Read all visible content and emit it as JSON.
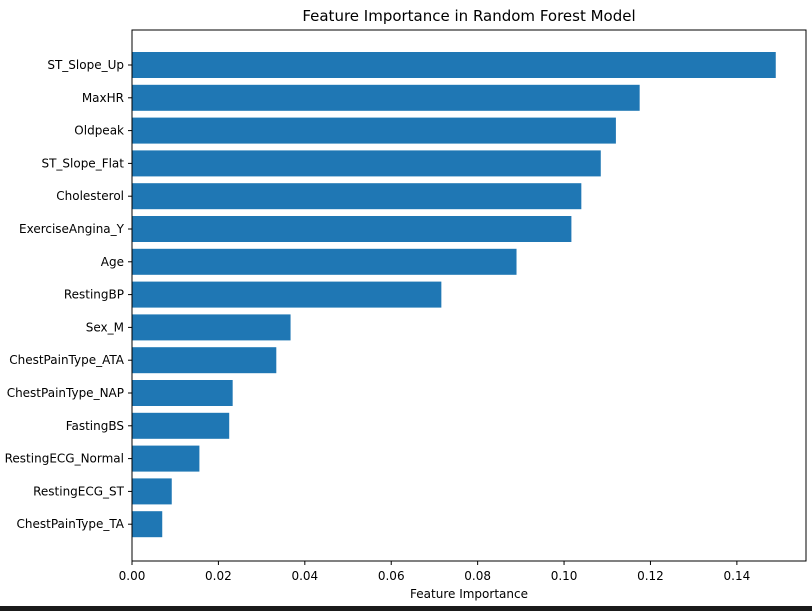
{
  "chart_data": {
    "type": "bar",
    "orientation": "horizontal",
    "title": "Feature Importance in Random Forest Model",
    "xlabel": "Feature Importance",
    "ylabel": "",
    "categories": [
      "ST_Slope_Up",
      "MaxHR",
      "Oldpeak",
      "ST_Slope_Flat",
      "Cholesterol",
      "ExerciseAngina_Y",
      "Age",
      "RestingBP",
      "Sex_M",
      "ChestPainType_ATA",
      "ChestPainType_NAP",
      "FastingBS",
      "RestingECG_Normal",
      "RestingECG_ST",
      "ChestPainType_TA"
    ],
    "values": [
      0.149,
      0.1175,
      0.112,
      0.1085,
      0.104,
      0.1017,
      0.089,
      0.0716,
      0.0367,
      0.0334,
      0.0233,
      0.0225,
      0.0156,
      0.0092,
      0.007
    ],
    "xlim": [
      0,
      0.156
    ],
    "xticks": [
      0.0,
      0.02,
      0.04,
      0.06,
      0.08,
      0.1,
      0.12,
      0.14
    ],
    "xtick_labels": [
      "0.00",
      "0.02",
      "0.04",
      "0.06",
      "0.08",
      "0.10",
      "0.12",
      "0.14"
    ],
    "grid": false,
    "bar_color": "#1f77b4"
  }
}
